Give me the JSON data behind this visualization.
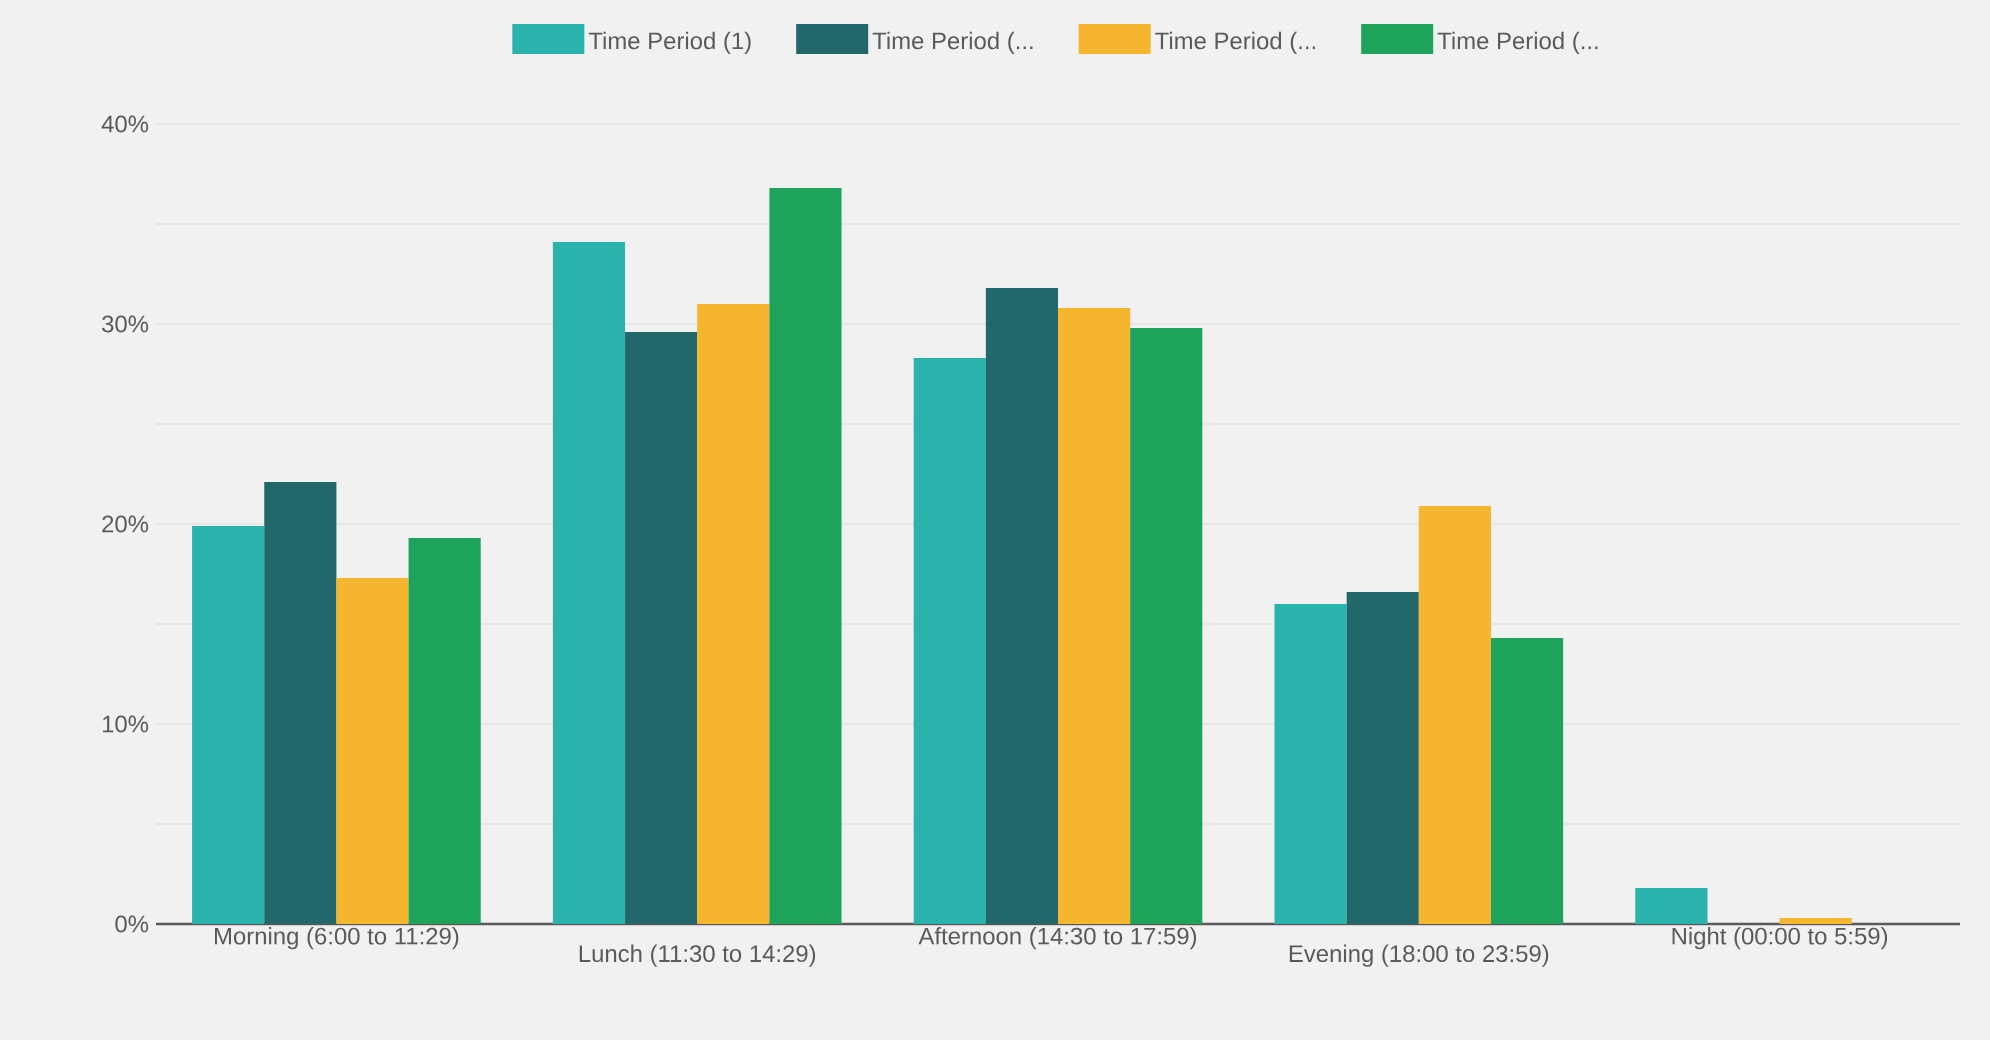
{
  "chart_data": {
    "type": "bar",
    "categories": [
      "Morning (6:00 to 11:29)",
      "Lunch (11:30 to 14:29)",
      "Afternoon (14:30 to 17:59)",
      "Evening (18:00 to 23:59)",
      "Night (00:00 to 5:59)"
    ],
    "series": [
      {
        "name": "Time Period (1)",
        "color": "#2ab3ad",
        "values": [
          19.9,
          34.1,
          28.3,
          16.0,
          1.8
        ]
      },
      {
        "name": "Time Period (...",
        "color": "#22676a",
        "values": [
          22.1,
          29.6,
          31.8,
          16.6,
          0
        ]
      },
      {
        "name": "Time Period (...",
        "color": "#f5b52e",
        "values": [
          17.3,
          31.0,
          30.8,
          20.9,
          0.3
        ]
      },
      {
        "name": "Time Period (...",
        "color": "#1ea35a",
        "values": [
          19.3,
          36.8,
          29.8,
          14.3,
          0
        ]
      }
    ],
    "ylim": [
      0,
      40
    ],
    "yticks": [
      {
        "value": 0,
        "label": "0%"
      },
      {
        "value": 5,
        "label": null
      },
      {
        "value": 10,
        "label": "10%"
      },
      {
        "value": 15,
        "label": null
      },
      {
        "value": 20,
        "label": "20%"
      },
      {
        "value": 25,
        "label": null
      },
      {
        "value": 30,
        "label": "30%"
      },
      {
        "value": 35,
        "label": null
      },
      {
        "value": 40,
        "label": "40%"
      }
    ],
    "grid": "y",
    "legend": "top"
  }
}
